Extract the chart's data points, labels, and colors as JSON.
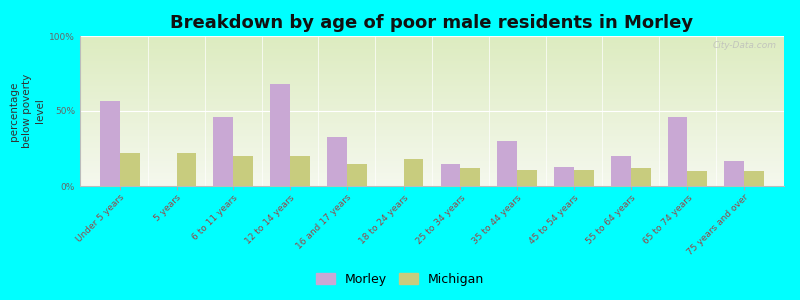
{
  "title": "Breakdown by age of poor male residents in Morley",
  "ylabel": "percentage\nbelow poverty\nlevel",
  "categories": [
    "Under 5 years",
    "5 years",
    "6 to 11 years",
    "12 to 14 years",
    "16 and 17 years",
    "18 to 24 years",
    "25 to 34 years",
    "35 to 44 years",
    "45 to 54 years",
    "55 to 64 years",
    "65 to 74 years",
    "75 years and over"
  ],
  "morley": [
    57,
    0,
    46,
    68,
    33,
    0,
    15,
    30,
    13,
    20,
    46,
    17
  ],
  "michigan": [
    22,
    22,
    20,
    20,
    15,
    18,
    12,
    11,
    11,
    12,
    10,
    10
  ],
  "morley_color": "#c9a8d4",
  "michigan_color": "#c8cc7e",
  "background_color": "#00ffff",
  "ylim": [
    0,
    100
  ],
  "yticks": [
    0,
    50,
    100
  ],
  "ytick_labels": [
    "0%",
    "50%",
    "100%"
  ],
  "bar_width": 0.35,
  "title_fontsize": 13,
  "axis_label_fontsize": 7.5,
  "tick_fontsize": 6.5,
  "legend_fontsize": 9,
  "watermark": "City-Data.com"
}
